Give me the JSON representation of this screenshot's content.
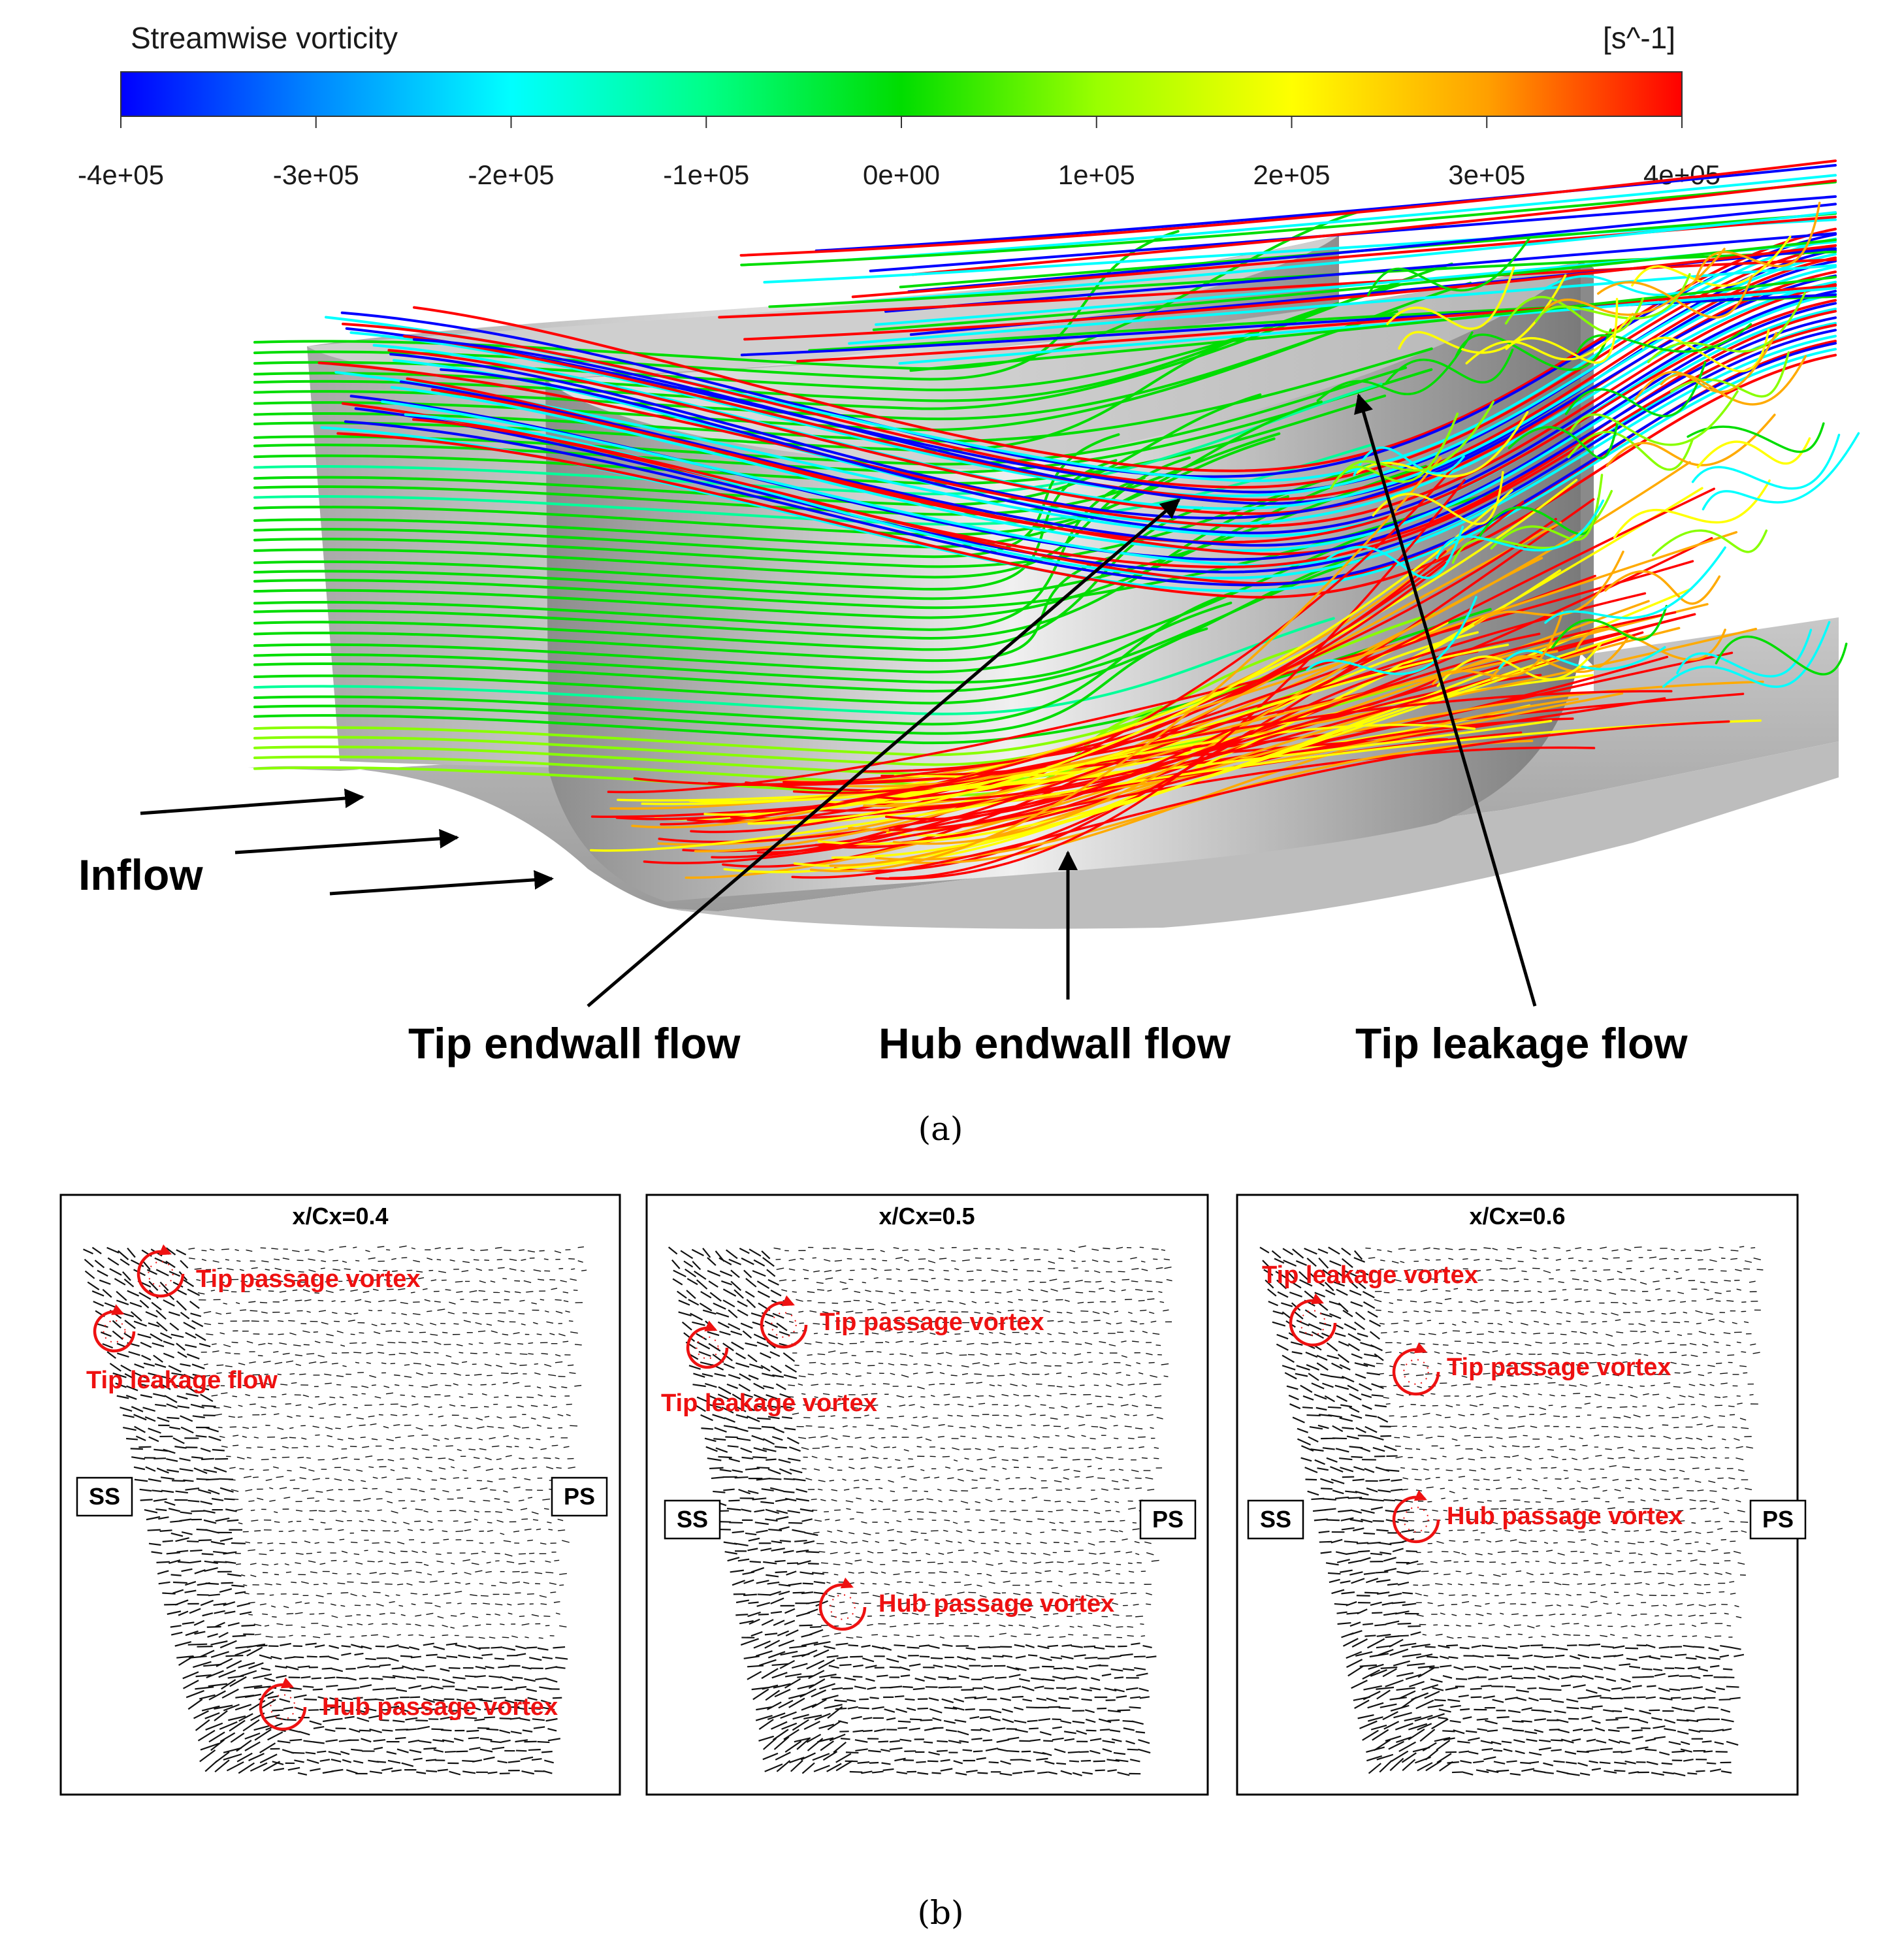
{
  "colorbar": {
    "title": "Streamwise vorticity",
    "unit": "[s^-1]",
    "ticks": [
      "-4e+05",
      "-3e+05",
      "-2e+05",
      "-1e+05",
      "0e+00",
      "1e+05",
      "2e+05",
      "3e+05",
      "4e+05"
    ],
    "range": [
      -400000,
      400000
    ],
    "colormap": [
      "#0000ff",
      "#00aaff",
      "#00ffff",
      "#00ff99",
      "#00dd00",
      "#88ff00",
      "#ffff00",
      "#ffaa00",
      "#ff0000"
    ]
  },
  "panel_a": {
    "caption": "(a)",
    "inflow_label": "Inflow",
    "callouts": [
      "Tip endwall flow",
      "Hub endwall flow",
      "Tip leakage flow"
    ]
  },
  "panel_b": {
    "caption": "(b)",
    "ss_label": "SS",
    "ps_label": "PS",
    "vortex_color": "#ee1111",
    "panels": [
      {
        "title": "x/Cx=0.4",
        "vortices": [
          "Tip passage vortex",
          "Tip leakage flow",
          "Hub passage vortex"
        ]
      },
      {
        "title": "x/Cx=0.5",
        "vortices": [
          "Tip passage vortex",
          "Tip leakage vortex",
          "Hub passage vortex"
        ]
      },
      {
        "title": "x/Cx=0.6",
        "vortices": [
          "Tip leakage vortex",
          "Tip passage vortex",
          "Hub passage vortex"
        ]
      }
    ]
  }
}
